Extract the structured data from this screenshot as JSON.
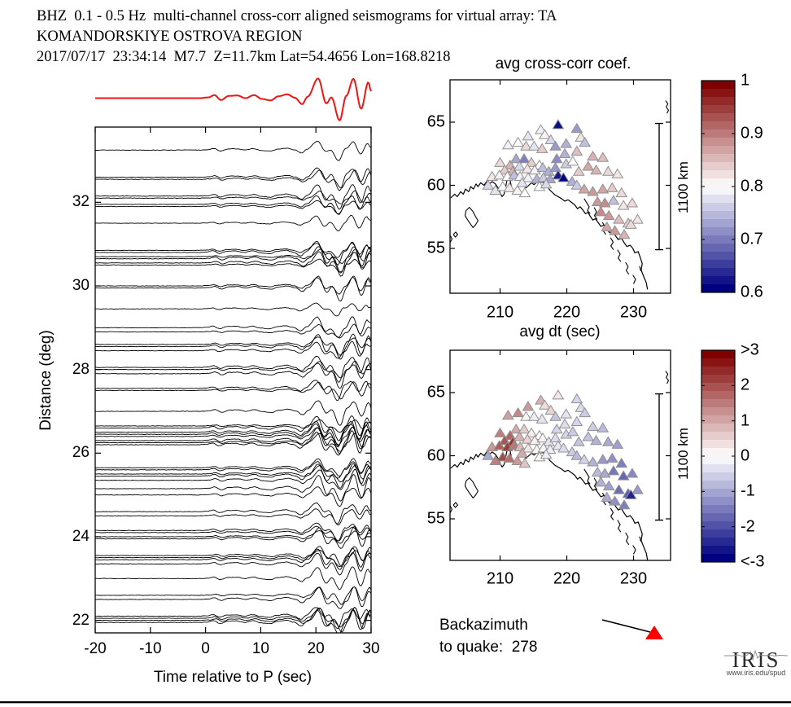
{
  "header": {
    "line1": "BHZ  0.1 - 0.5 Hz  multi-channel cross-corr aligned seismograms for virtual array: TA",
    "line2": "KOMANDORSKIYE OSTROVA REGION",
    "line3": "2017/07/17  23:34:14  M7.7  Z=11.7km Lat=54.4656 Lon=168.8218"
  },
  "backazimuth": {
    "line1": "Backazimuth",
    "line2": "to quake:  278",
    "value_deg": 278,
    "marker_color": "#ff0000"
  },
  "logo": {
    "text": "IRIS",
    "url": "www.iris.edu/spud"
  },
  "colors": {
    "trace": "#000000",
    "reference_trace": "#f01414",
    "colormap_low": "#000080",
    "colormap_mid": "#ffffff",
    "colormap_high": "#800000",
    "triangle_stroke": "#909090"
  },
  "stations": [
    [
      218.7,
      64.8,
      0.61,
      0.3
    ],
    [
      221.5,
      64.5,
      0.72,
      -0.5
    ],
    [
      216.1,
      64.4,
      0.79,
      0.9
    ],
    [
      214.2,
      63.9,
      0.78,
      1.2
    ],
    [
      216.7,
      64.0,
      0.81,
      0.4
    ],
    [
      222.1,
      63.8,
      0.82,
      -0.4
    ],
    [
      222.7,
      63.4,
      0.75,
      -0.6
    ],
    [
      212.7,
      63.4,
      0.8,
      1.4
    ],
    [
      211.2,
      63.2,
      0.79,
      1.1
    ],
    [
      217.6,
      63.6,
      0.77,
      0.5
    ],
    [
      219.9,
      63.3,
      0.74,
      -0.3
    ],
    [
      213.9,
      63.1,
      0.83,
      0.1
    ],
    [
      215.1,
      63.1,
      0.78,
      -0.2
    ],
    [
      216.3,
      62.9,
      0.84,
      -0.3
    ],
    [
      218.3,
      63.1,
      0.72,
      -0.7
    ],
    [
      221.5,
      62.7,
      0.85,
      -0.5
    ],
    [
      219.7,
      62.5,
      0.74,
      -0.4
    ],
    [
      223.9,
      62.3,
      0.86,
      -0.6
    ],
    [
      225.4,
      62.2,
      0.85,
      -0.8
    ],
    [
      210.0,
      61.8,
      0.83,
      1.5
    ],
    [
      211.5,
      61.6,
      0.86,
      1.8
    ],
    [
      212.4,
      62.1,
      0.73,
      1.0
    ],
    [
      213.6,
      62.1,
      0.7,
      0.6
    ],
    [
      214.7,
      61.8,
      0.84,
      0.2
    ],
    [
      215.9,
      61.6,
      0.8,
      0.0
    ],
    [
      218.5,
      62.1,
      0.71,
      -0.5
    ],
    [
      219.9,
      61.7,
      0.76,
      -0.5
    ],
    [
      220.9,
      61.9,
      0.8,
      -0.6
    ],
    [
      221.8,
      61.1,
      0.84,
      -0.7
    ],
    [
      223.2,
      61.5,
      0.87,
      -0.7
    ],
    [
      224.4,
      61.2,
      0.86,
      -0.9
    ],
    [
      226.2,
      61.1,
      0.83,
      -1.0
    ],
    [
      227.6,
      60.9,
      0.82,
      -1.1
    ],
    [
      210.7,
      61.2,
      0.84,
      2.0
    ],
    [
      211.9,
      61.1,
      0.86,
      2.4
    ],
    [
      212.9,
      61.5,
      0.77,
      0.9
    ],
    [
      214.1,
      61.3,
      0.82,
      0.5
    ],
    [
      215.2,
      61.2,
      0.79,
      0.2
    ],
    [
      216.4,
      61.4,
      0.75,
      -0.1
    ],
    [
      217.3,
      61.1,
      0.74,
      -0.3
    ],
    [
      218.3,
      61.4,
      0.72,
      -0.4
    ],
    [
      208.8,
      60.7,
      0.82,
      1.2
    ],
    [
      209.9,
      60.8,
      0.81,
      1.9
    ],
    [
      211.1,
      60.7,
      0.8,
      2.3
    ],
    [
      212.1,
      60.8,
      0.75,
      1.6
    ],
    [
      213.0,
      60.7,
      0.79,
      0.8
    ],
    [
      214.2,
      60.6,
      0.79,
      0.3
    ],
    [
      215.5,
      60.5,
      0.74,
      0.1
    ],
    [
      216.5,
      60.6,
      0.76,
      -0.1
    ],
    [
      217.5,
      60.5,
      0.73,
      -0.2
    ],
    [
      218.7,
      60.8,
      0.62,
      -0.3
    ],
    [
      219.5,
      60.6,
      0.6,
      -0.4
    ],
    [
      220.8,
      60.3,
      0.74,
      -0.6
    ],
    [
      221.5,
      60.0,
      0.76,
      -0.8
    ],
    [
      208.2,
      60.0,
      0.77,
      -1.0
    ],
    [
      209.3,
      59.6,
      0.78,
      1.5
    ],
    [
      210.4,
      59.9,
      0.8,
      2.1
    ],
    [
      211.4,
      59.8,
      0.82,
      1.7
    ],
    [
      212.6,
      59.6,
      0.81,
      1.2
    ],
    [
      213.7,
      59.4,
      0.8,
      0.7
    ],
    [
      215.9,
      59.9,
      0.8,
      0.1
    ],
    [
      216.9,
      60.1,
      0.77,
      -0.2
    ],
    [
      222.6,
      59.7,
      0.87,
      -0.5
    ],
    [
      223.9,
      59.5,
      0.88,
      -0.9
    ],
    [
      225.4,
      59.7,
      0.87,
      -1.2
    ],
    [
      226.8,
      59.8,
      0.84,
      -1.3
    ],
    [
      228.2,
      59.4,
      0.83,
      -1.5
    ],
    [
      224.6,
      58.7,
      0.88,
      -0.8
    ],
    [
      225.7,
      58.6,
      0.89,
      -1.0
    ],
    [
      227.0,
      58.8,
      0.75,
      -1.6
    ],
    [
      228.5,
      58.4,
      0.82,
      -1.8
    ],
    [
      229.8,
      58.6,
      0.83,
      -1.4
    ],
    [
      225.1,
      57.9,
      0.89,
      -0.9
    ],
    [
      226.3,
      57.6,
      0.88,
      -1.1
    ],
    [
      227.8,
      57.3,
      0.85,
      -1.7
    ],
    [
      229.2,
      57.0,
      0.84,
      -1.9
    ],
    [
      230.6,
      57.3,
      0.82,
      -1.2
    ],
    [
      226.0,
      56.7,
      0.87,
      -1.0
    ],
    [
      227.2,
      56.4,
      0.88,
      -1.3
    ],
    [
      228.6,
      56.1,
      0.86,
      -1.5
    ],
    [
      229.6,
      56.9,
      0.83,
      -2.6
    ],
    [
      213.3,
      60.2,
      0.78,
      1.0
    ]
  ],
  "chart_data": [
    {
      "type": "line",
      "panel": "aligned-seismograms",
      "xlabel": "Time relative to P (sec)",
      "ylabel": "Distance (deg)",
      "xticks": [
        -20,
        -10,
        0,
        10,
        20,
        30
      ],
      "yticks": [
        22,
        24,
        26,
        28,
        30,
        32
      ],
      "xlim": [
        -20,
        30
      ],
      "ylim": [
        21.7,
        33.8
      ],
      "n_traces": 60,
      "trace_distances_deg": [
        33.25,
        32.6,
        32.55,
        32.15,
        32.1,
        31.95,
        31.9,
        31.5,
        30.85,
        30.8,
        30.7,
        30.65,
        30.55,
        30.5,
        30.0,
        29.95,
        29.45,
        29.0,
        28.9,
        28.6,
        28.55,
        28.45,
        28.05,
        28.0,
        27.9,
        27.55,
        27.5,
        27.0,
        26.65,
        26.6,
        26.5,
        26.45,
        26.4,
        26.3,
        26.25,
        26.2,
        25.65,
        25.6,
        25.5,
        25.45,
        25.35,
        25.15,
        25.0,
        24.6,
        24.5,
        24.15,
        24.1,
        24.0,
        23.95,
        23.55,
        23.5,
        23.45,
        23.35,
        23.0,
        22.6,
        22.5,
        22.1,
        22.05,
        22.0,
        21.95
      ],
      "reference_waveform_keypoints": [
        [
          -20,
          0
        ],
        [
          -1,
          0
        ],
        [
          0.5,
          0.1
        ],
        [
          1.6,
          0.4
        ],
        [
          2.8,
          -0.25
        ],
        [
          4.2,
          0.3
        ],
        [
          5.8,
          0.35
        ],
        [
          7.2,
          0.0
        ],
        [
          8.8,
          0.4
        ],
        [
          10.2,
          -0.1
        ],
        [
          11.8,
          -0.3
        ],
        [
          13.2,
          0.25
        ],
        [
          14.8,
          0.5
        ],
        [
          16.2,
          0.05
        ],
        [
          17.5,
          -0.8
        ],
        [
          18.5,
          0.2
        ],
        [
          20.4,
          2.6
        ],
        [
          21.9,
          -0.7
        ],
        [
          22.8,
          0.1
        ],
        [
          24.3,
          -2.95
        ],
        [
          25.5,
          0.3
        ],
        [
          26.8,
          2.55
        ],
        [
          28.2,
          -1.4
        ],
        [
          29.5,
          2.1
        ],
        [
          30,
          0.9
        ]
      ]
    },
    {
      "type": "scatter",
      "panel": "map-cross-corr",
      "title": "avg cross-corr coef.",
      "xticks": [
        210,
        220,
        230
      ],
      "yticks": [
        55,
        60,
        65
      ],
      "xlim": [
        202.5,
        235.5
      ],
      "ylim": [
        51.45,
        68.35
      ],
      "marker": "triangle",
      "points_ref": "stations",
      "value_column": 2,
      "colorbar": {
        "ticks": [
          "1",
          "0.9",
          "0.8",
          "0.7",
          "0.6"
        ],
        "values": [
          1,
          0.9,
          0.8,
          0.7,
          0.6
        ],
        "vmin": 0.6,
        "vmax": 1.0,
        "center": 0.8
      },
      "scalebar_label": "1100 km"
    },
    {
      "type": "scatter",
      "panel": "map-delay-time",
      "title": "avg dt (sec)",
      "xticks": [
        210,
        220,
        230
      ],
      "yticks": [
        55,
        60,
        65
      ],
      "xlim": [
        202.5,
        235.5
      ],
      "ylim": [
        51.7,
        68.35
      ],
      "marker": "triangle",
      "points_ref": "stations",
      "value_column": 3,
      "colorbar": {
        "ticks": [
          ">3",
          "2",
          "1",
          "0",
          "-1",
          "-2",
          "<-3"
        ],
        "values": [
          3,
          2,
          1,
          0,
          -1,
          -2,
          -3
        ],
        "vmin": -3,
        "vmax": 3,
        "center": 0
      },
      "scalebar_label": "1100 km"
    }
  ]
}
